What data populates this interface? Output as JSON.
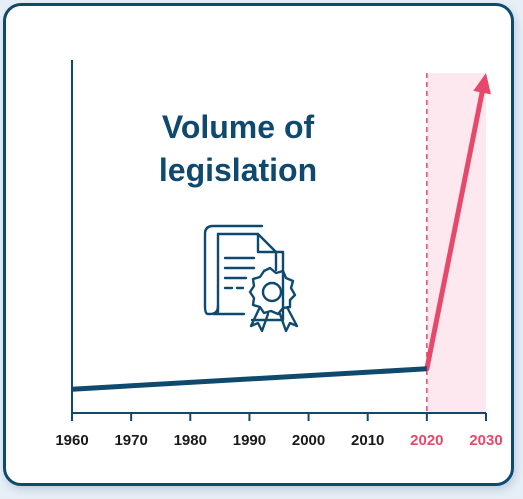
{
  "chart_data": {
    "type": "line",
    "title": "Volume of legislation",
    "x_ticks": [
      "1960",
      "1970",
      "1980",
      "1990",
      "2000",
      "2010",
      "2020",
      "2030"
    ],
    "highlight_ticks": [
      "2020",
      "2030"
    ],
    "xlim": [
      1960,
      2030
    ],
    "series": [
      {
        "color": "#0f4a6e",
        "x": [
          1960,
          2020
        ],
        "y": [
          0.07,
          0.13
        ]
      },
      {
        "color": "#e8486b",
        "x": [
          2020,
          2030
        ],
        "y": [
          0.13,
          1.0
        ],
        "arrow": true
      }
    ],
    "highlight_region": {
      "x": [
        2020,
        2030
      ],
      "color": "#fce8ee",
      "line_color": "#e8486b"
    },
    "icon": "certificate-document-icon"
  },
  "colors": {
    "primary": "#0f4a6e",
    "accent": "#e8486b",
    "highlight_fill": "#fce8ee"
  }
}
